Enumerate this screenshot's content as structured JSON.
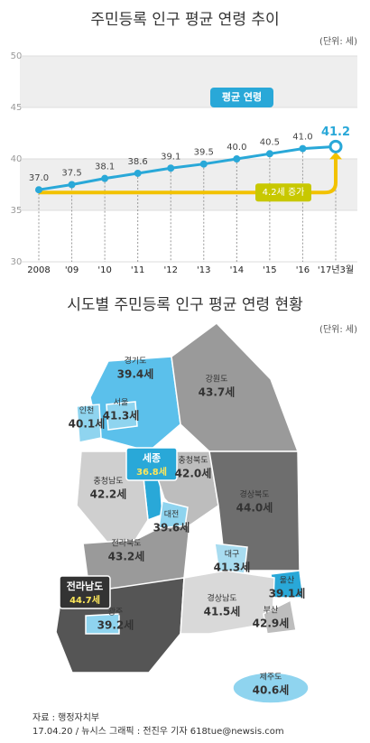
{
  "chart_data": {
    "type": "line",
    "title": "주민등록 인구 평균 연령 추이",
    "unit": "(단위: 세)",
    "categories": [
      "2008",
      "'09",
      "'10",
      "'11",
      "'12",
      "'13",
      "'14",
      "'15",
      "'16",
      "'17년3월"
    ],
    "series": [
      {
        "name": "평균 연령",
        "color": "#29a8d8",
        "values": [
          37.0,
          37.5,
          38.1,
          38.6,
          39.1,
          39.5,
          40.0,
          40.5,
          41.0,
          41.2
        ],
        "value_labels": [
          "37.0",
          "37.5",
          "38.1",
          "38.6",
          "39.1",
          "39.5",
          "40.0",
          "40.5",
          "41.0",
          "41.2"
        ]
      }
    ],
    "ylim": [
      30,
      50
    ],
    "yticks": [
      30,
      35,
      40,
      45,
      50
    ],
    "grid": true,
    "annotations": [
      "4.2세 증가"
    ]
  },
  "map": {
    "title": "시도별 주민등록 인구 평균 연령 현황",
    "unit": "(단위: 세)",
    "regions": [
      {
        "name": "경기도",
        "age": "39.4세"
      },
      {
        "name": "강원도",
        "age": "43.7세"
      },
      {
        "name": "인천",
        "age": "40.1세"
      },
      {
        "name": "서울",
        "age": "41.3세"
      },
      {
        "name": "세종",
        "age": "36.8세"
      },
      {
        "name": "충청북도",
        "age": "42.0세"
      },
      {
        "name": "충청남도",
        "age": "42.2세"
      },
      {
        "name": "대전",
        "age": "39.6세"
      },
      {
        "name": "경상북도",
        "age": "44.0세"
      },
      {
        "name": "전라북도",
        "age": "43.2세"
      },
      {
        "name": "대구",
        "age": "41.3세"
      },
      {
        "name": "울산",
        "age": "39.1세"
      },
      {
        "name": "전라남도",
        "age": "44.7세"
      },
      {
        "name": "광주",
        "age": "39.2세"
      },
      {
        "name": "경상남도",
        "age": "41.5세"
      },
      {
        "name": "부산",
        "age": "42.9세"
      },
      {
        "name": "제주도",
        "age": "40.6세"
      }
    ]
  },
  "footer": {
    "source": "자료 : 행정자치부",
    "credit": "17.04.20 / 뉴시스 그래픽 : 전진우 기자 618tue@newsis.com"
  }
}
